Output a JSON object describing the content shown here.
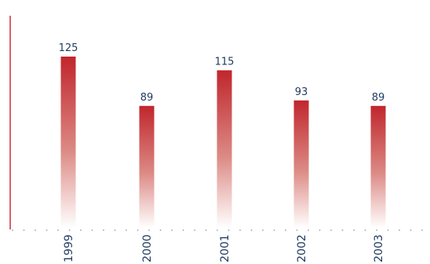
{
  "chart_data": {
    "type": "bar",
    "title": "",
    "xlabel": "",
    "ylabel": "",
    "categories": [
      "1999",
      "2000",
      "2001",
      "2002",
      "2003"
    ],
    "values": [
      125,
      89,
      115,
      93,
      89
    ],
    "ylim": [
      0,
      145
    ],
    "grid": false,
    "legend": "none",
    "colors": {
      "bar_top": "#c0262c",
      "bar_bottom": "#ffffff",
      "axis_line": "#cc2f3a",
      "label_text": "#1f3a5f",
      "baseline_dots": "#9aa0a6"
    }
  }
}
